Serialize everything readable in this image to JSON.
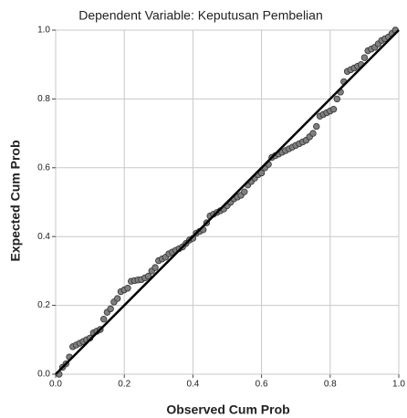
{
  "chart_data": {
    "type": "scatter",
    "title": "Dependent Variable: Keputusan Pembelian",
    "x_label": "Observed Cum Prob",
    "y_label": "Expected Cum Prob",
    "xlim": [
      0,
      1
    ],
    "ylim": [
      0,
      1
    ],
    "xticks": [
      {
        "value": 0,
        "label": "0.0"
      },
      0.2,
      0.4,
      0.6,
      0.8,
      {
        "value": 1,
        "label": "1.0"
      }
    ],
    "yticks": [
      {
        "value": 0,
        "label": "0.0"
      },
      0.2,
      0.4,
      0.6,
      0.8,
      {
        "value": 1,
        "label": "1.0"
      }
    ],
    "grid": true,
    "color": "#7f7f7f",
    "reference_line": {
      "x": [
        0,
        1
      ],
      "y": [
        0,
        1
      ],
      "color": "#000000"
    },
    "x": [
      0.01,
      0.02,
      0.03,
      0.04,
      0.05,
      0.06,
      0.07,
      0.08,
      0.09,
      0.1,
      0.11,
      0.12,
      0.13,
      0.14,
      0.15,
      0.16,
      0.17,
      0.18,
      0.19,
      0.2,
      0.21,
      0.22,
      0.23,
      0.24,
      0.25,
      0.26,
      0.27,
      0.28,
      0.29,
      0.3,
      0.31,
      0.32,
      0.33,
      0.34,
      0.35,
      0.36,
      0.37,
      0.38,
      0.39,
      0.4,
      0.41,
      0.42,
      0.43,
      0.44,
      0.45,
      0.46,
      0.47,
      0.48,
      0.49,
      0.5,
      0.51,
      0.52,
      0.53,
      0.54,
      0.55,
      0.56,
      0.57,
      0.58,
      0.59,
      0.6,
      0.61,
      0.62,
      0.63,
      0.64,
      0.65,
      0.66,
      0.67,
      0.68,
      0.69,
      0.7,
      0.71,
      0.72,
      0.73,
      0.74,
      0.75,
      0.76,
      0.77,
      0.78,
      0.79,
      0.8,
      0.81,
      0.82,
      0.83,
      0.84,
      0.85,
      0.86,
      0.87,
      0.88,
      0.89,
      0.9,
      0.91,
      0.92,
      0.93,
      0.94,
      0.95,
      0.96,
      0.97,
      0.98,
      0.99
    ],
    "y": [
      0.0,
      0.02,
      0.03,
      0.05,
      0.08,
      0.085,
      0.09,
      0.095,
      0.1,
      0.105,
      0.12,
      0.125,
      0.13,
      0.16,
      0.18,
      0.19,
      0.21,
      0.22,
      0.24,
      0.245,
      0.25,
      0.27,
      0.272,
      0.274,
      0.275,
      0.28,
      0.285,
      0.3,
      0.31,
      0.33,
      0.335,
      0.34,
      0.35,
      0.355,
      0.36,
      0.365,
      0.37,
      0.38,
      0.39,
      0.395,
      0.41,
      0.415,
      0.42,
      0.44,
      0.46,
      0.465,
      0.47,
      0.475,
      0.48,
      0.49,
      0.5,
      0.51,
      0.515,
      0.52,
      0.53,
      0.55,
      0.56,
      0.57,
      0.58,
      0.585,
      0.6,
      0.61,
      0.63,
      0.635,
      0.64,
      0.645,
      0.65,
      0.655,
      0.66,
      0.665,
      0.67,
      0.675,
      0.68,
      0.69,
      0.7,
      0.72,
      0.75,
      0.755,
      0.76,
      0.765,
      0.77,
      0.8,
      0.82,
      0.85,
      0.88,
      0.885,
      0.89,
      0.895,
      0.9,
      0.92,
      0.94,
      0.945,
      0.95,
      0.96,
      0.97,
      0.975,
      0.98,
      0.99,
      1.0
    ]
  }
}
